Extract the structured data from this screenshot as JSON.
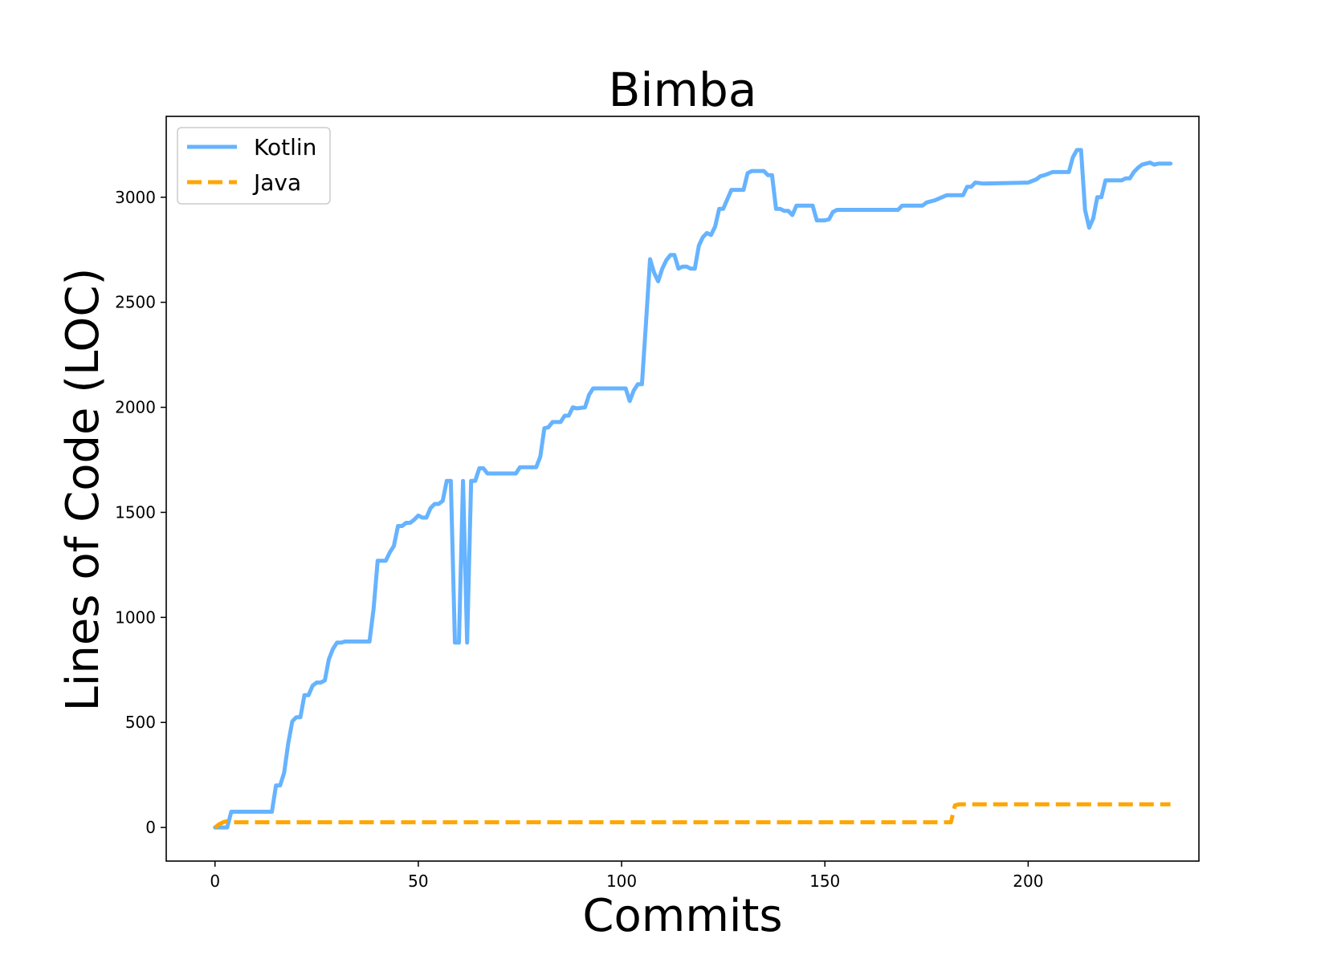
{
  "chart_data": {
    "type": "line",
    "title": "Bimba",
    "xlabel": "Commits",
    "ylabel": "Lines of Code (LOC)",
    "xlim": [
      -12,
      242
    ],
    "ylim": [
      -160,
      3385
    ],
    "xticks": [
      0,
      50,
      100,
      150,
      200
    ],
    "yticks": [
      0,
      500,
      1000,
      1500,
      2000,
      2500,
      3000
    ],
    "grid": false,
    "legend_position": "upper-left",
    "series": [
      {
        "name": "Kotlin",
        "color": "#66b3ff",
        "style": "solid",
        "points": [
          [
            0,
            0
          ],
          [
            3,
            0
          ],
          [
            4,
            75
          ],
          [
            14,
            75
          ],
          [
            15,
            200
          ],
          [
            16,
            200
          ],
          [
            17,
            260
          ],
          [
            18,
            400
          ],
          [
            19,
            505
          ],
          [
            20,
            525
          ],
          [
            21,
            525
          ],
          [
            22,
            630
          ],
          [
            23,
            630
          ],
          [
            24,
            675
          ],
          [
            25,
            690
          ],
          [
            26,
            690
          ],
          [
            27,
            700
          ],
          [
            28,
            800
          ],
          [
            29,
            850
          ],
          [
            30,
            880
          ],
          [
            31,
            880
          ],
          [
            32,
            885
          ],
          [
            38,
            885
          ],
          [
            39,
            1040
          ],
          [
            40,
            1270
          ],
          [
            42,
            1270
          ],
          [
            43,
            1310
          ],
          [
            44,
            1340
          ],
          [
            45,
            1435
          ],
          [
            46,
            1435
          ],
          [
            47,
            1450
          ],
          [
            48,
            1450
          ],
          [
            49,
            1465
          ],
          [
            50,
            1485
          ],
          [
            51,
            1475
          ],
          [
            52,
            1475
          ],
          [
            53,
            1520
          ],
          [
            54,
            1540
          ],
          [
            55,
            1540
          ],
          [
            56,
            1555
          ],
          [
            57,
            1650
          ],
          [
            58,
            1650
          ],
          [
            59,
            880
          ],
          [
            60,
            880
          ],
          [
            61,
            1650
          ],
          [
            62,
            880
          ],
          [
            63,
            1650
          ],
          [
            64,
            1650
          ],
          [
            65,
            1710
          ],
          [
            66,
            1710
          ],
          [
            67,
            1685
          ],
          [
            74,
            1685
          ],
          [
            75,
            1715
          ],
          [
            79,
            1715
          ],
          [
            80,
            1765
          ],
          [
            81,
            1900
          ],
          [
            82,
            1905
          ],
          [
            83,
            1930
          ],
          [
            85,
            1930
          ],
          [
            86,
            1960
          ],
          [
            87,
            1960
          ],
          [
            88,
            2000
          ],
          [
            89,
            1995
          ],
          [
            91,
            2000
          ],
          [
            92,
            2060
          ],
          [
            93,
            2090
          ],
          [
            101,
            2090
          ],
          [
            102,
            2030
          ],
          [
            103,
            2080
          ],
          [
            104,
            2110
          ],
          [
            105,
            2110
          ],
          [
            106,
            2400
          ],
          [
            107,
            2705
          ],
          [
            108,
            2640
          ],
          [
            109,
            2600
          ],
          [
            110,
            2660
          ],
          [
            111,
            2700
          ],
          [
            112,
            2725
          ],
          [
            113,
            2725
          ],
          [
            114,
            2660
          ],
          [
            115,
            2670
          ],
          [
            116,
            2670
          ],
          [
            117,
            2660
          ],
          [
            118,
            2660
          ],
          [
            119,
            2770
          ],
          [
            120,
            2810
          ],
          [
            121,
            2830
          ],
          [
            122,
            2820
          ],
          [
            123,
            2860
          ],
          [
            124,
            2945
          ],
          [
            125,
            2945
          ],
          [
            126,
            2990
          ],
          [
            127,
            3035
          ],
          [
            130,
            3035
          ],
          [
            131,
            3115
          ],
          [
            132,
            3125
          ],
          [
            135,
            3125
          ],
          [
            136,
            3105
          ],
          [
            137,
            3105
          ],
          [
            138,
            2945
          ],
          [
            139,
            2945
          ],
          [
            140,
            2935
          ],
          [
            141,
            2935
          ],
          [
            142,
            2915
          ],
          [
            143,
            2960
          ],
          [
            147,
            2960
          ],
          [
            148,
            2890
          ],
          [
            150,
            2890
          ],
          [
            151,
            2895
          ],
          [
            152,
            2930
          ],
          [
            153,
            2940
          ],
          [
            160,
            2940
          ],
          [
            168,
            2940
          ],
          [
            169,
            2960
          ],
          [
            174,
            2960
          ],
          [
            175,
            2975
          ],
          [
            177,
            2985
          ],
          [
            180,
            3010
          ],
          [
            184,
            3010
          ],
          [
            185,
            3050
          ],
          [
            186,
            3050
          ],
          [
            187,
            3070
          ],
          [
            189,
            3065
          ],
          [
            200,
            3070
          ],
          [
            202,
            3085
          ],
          [
            203,
            3100
          ],
          [
            204,
            3105
          ],
          [
            206,
            3120
          ],
          [
            210,
            3120
          ],
          [
            211,
            3190
          ],
          [
            212,
            3225
          ],
          [
            213,
            3225
          ],
          [
            214,
            2940
          ],
          [
            215,
            2855
          ],
          [
            216,
            2900
          ],
          [
            217,
            3000
          ],
          [
            218,
            3000
          ],
          [
            219,
            3080
          ],
          [
            223,
            3080
          ],
          [
            224,
            3090
          ],
          [
            225,
            3090
          ],
          [
            226,
            3120
          ],
          [
            227,
            3140
          ],
          [
            228,
            3155
          ],
          [
            230,
            3165
          ],
          [
            231,
            3155
          ],
          [
            232,
            3160
          ],
          [
            235,
            3160
          ]
        ]
      },
      {
        "name": "Java",
        "color": "#ffa500",
        "style": "dashed",
        "points": [
          [
            0,
            0
          ],
          [
            1,
            15
          ],
          [
            2,
            25
          ],
          [
            3,
            30
          ],
          [
            4,
            25
          ],
          [
            181,
            25
          ],
          [
            182,
            105
          ],
          [
            183,
            110
          ],
          [
            235,
            110
          ]
        ]
      }
    ]
  }
}
